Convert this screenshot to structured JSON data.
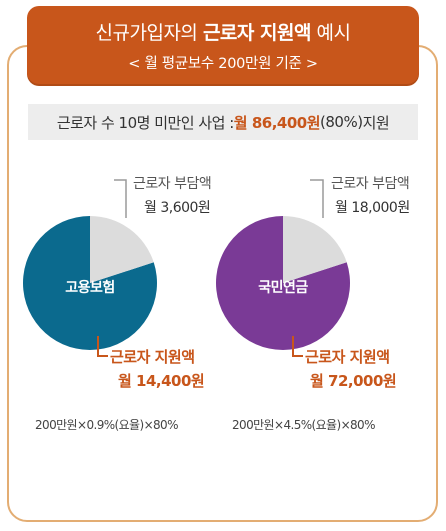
{
  "header": {
    "title_prefix": "신규가입자의 ",
    "title_emphasis": "근로자 지원액",
    "title_suffix": " 예시",
    "subtitle": "< 월 평균보수 200만원 기준 >"
  },
  "summary": {
    "prefix": "근로자 수 10명 미만인 사업 : ",
    "amount": "월 86,400원",
    "percent": "(80%)",
    "suffix": " 지원"
  },
  "colors": {
    "accent": "#c8561b",
    "frame": "#e3ad73",
    "slice_burden": "#dcdcdc",
    "employment_insurance": "#0b6a8e",
    "national_pension": "#7a3a96"
  },
  "charts": [
    {
      "label": "고용보험",
      "burden_caption": "근로자 부담액",
      "burden_amount": "월 3,600원",
      "support_caption": "근로자 지원액",
      "support_amount": "월 14,400원",
      "formula": "200만원×0.9%(요율)×80%",
      "burden_share": 0.2,
      "support_share": 0.8
    },
    {
      "label": "국민연금",
      "burden_caption": "근로자 부담액",
      "burden_amount": "월 18,000원",
      "support_caption": "근로자 지원액",
      "support_amount": "월 72,000원",
      "formula": "200만원×4.5%(요율)×80%",
      "burden_share": 0.2,
      "support_share": 0.8
    }
  ]
}
